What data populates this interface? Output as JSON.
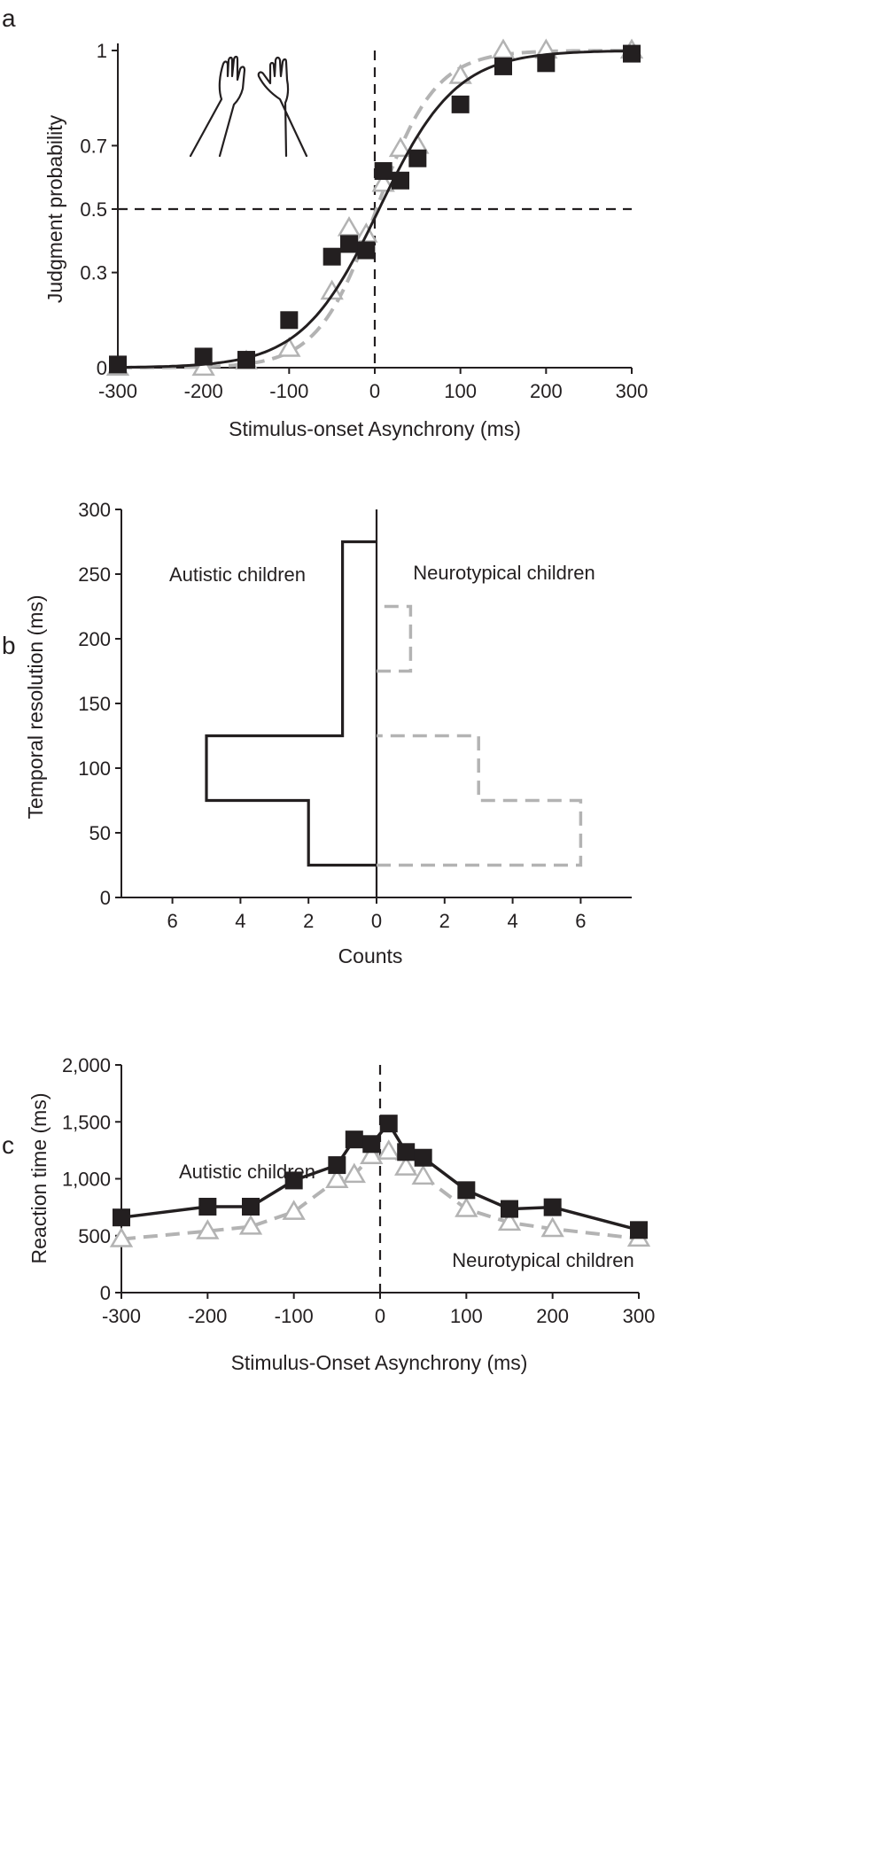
{
  "colors": {
    "autistic": "#231f20",
    "neurotypical": "#b3b3b3",
    "axis": "#231f20"
  },
  "chart_data": [
    {
      "panel": "a",
      "type": "scatter",
      "xlabel": "Stimulus-onset Asynchrony (ms)",
      "ylabel": "Judgment probability",
      "xlim": [
        -300,
        300
      ],
      "ylim": [
        0,
        1
      ],
      "xticks": [
        -300,
        -200,
        -100,
        0,
        100,
        200,
        300
      ],
      "xtick_labels": [
        "-300",
        "-200",
        "-100",
        "0",
        "100",
        "200",
        "300"
      ],
      "yticks": [
        0,
        0.3,
        0.5,
        0.7,
        1
      ],
      "ytick_labels": [
        "0",
        "0.3",
        "0.5",
        "0.7",
        "1"
      ],
      "reference_lines": {
        "x": 0,
        "y": 0.5
      },
      "icon": "hands-icon",
      "series": [
        {
          "name": "Autistic children",
          "marker": "square",
          "line": "solid",
          "x": [
            -300,
            -200,
            -150,
            -100,
            -50,
            -30,
            -10,
            10,
            30,
            50,
            100,
            150,
            200,
            300
          ],
          "values": [
            0.01,
            0.035,
            0.025,
            0.15,
            0.35,
            0.39,
            0.37,
            0.62,
            0.59,
            0.66,
            0.83,
            0.95,
            0.96,
            0.99
          ],
          "fit": {
            "type": "logistic",
            "mu": 5,
            "sigma": 72
          }
        },
        {
          "name": "Neurotypical children",
          "marker": "triangle",
          "line": "dashed",
          "x": [
            -300,
            -200,
            -150,
            -100,
            -50,
            -30,
            -10,
            10,
            30,
            50,
            100,
            150,
            200,
            300
          ],
          "values": [
            0.0,
            0.0,
            0.02,
            0.06,
            0.24,
            0.44,
            0.42,
            0.58,
            0.69,
            0.7,
            0.92,
            1.0,
            1.0,
            1.0
          ],
          "fit": {
            "type": "logistic",
            "mu": 2,
            "sigma": 55
          }
        }
      ]
    },
    {
      "panel": "b",
      "type": "bar",
      "orientation": "back-to-back horizontal histogram",
      "xlabel": "Counts",
      "ylabel": "Temporal resolution (ms)",
      "xlim": [
        -7.5,
        7.5
      ],
      "ylim": [
        0,
        300
      ],
      "xticks": [
        -6,
        -4,
        -2,
        0,
        2,
        4,
        6
      ],
      "xtick_labels": [
        "6",
        "4",
        "2",
        "0",
        "2",
        "4",
        "6"
      ],
      "yticks": [
        0,
        50,
        100,
        150,
        200,
        250,
        300
      ],
      "ytick_labels": [
        "0",
        "50",
        "100",
        "150",
        "200",
        "250",
        "300"
      ],
      "bin_edges": [
        25,
        75,
        125,
        175,
        225,
        275
      ],
      "series": [
        {
          "name": "Autistic children",
          "side": "left",
          "line": "solid",
          "counts": [
            2,
            5,
            1,
            1,
            1
          ]
        },
        {
          "name": "Neurotypical children",
          "side": "right",
          "line": "dashed",
          "counts": [
            6,
            3,
            0,
            1,
            0
          ]
        }
      ],
      "annotations": [
        "Autistic children",
        "Neurotypical children"
      ]
    },
    {
      "panel": "c",
      "type": "line",
      "xlabel": "Stimulus-Onset Asynchrony (ms)",
      "ylabel": "Reaction time (ms)",
      "xlim": [
        -300,
        300
      ],
      "ylim": [
        0,
        2000
      ],
      "xticks": [
        -300,
        -200,
        -100,
        0,
        100,
        200,
        300
      ],
      "xtick_labels": [
        "-300",
        "-200",
        "-100",
        "0",
        "100",
        "200",
        "300"
      ],
      "yticks": [
        0,
        500,
        1000,
        1500,
        2000
      ],
      "ytick_labels": [
        "0",
        "500",
        "1,000",
        "1,500",
        "2,000"
      ],
      "reference_lines": {
        "x": 0
      },
      "series": [
        {
          "name": "Autistic children",
          "marker": "square",
          "line": "solid",
          "x": [
            -300,
            -200,
            -150,
            -100,
            -50,
            -30,
            -10,
            10,
            30,
            50,
            100,
            150,
            200,
            300
          ],
          "values": [
            660,
            755,
            755,
            985,
            1120,
            1345,
            1305,
            1485,
            1235,
            1185,
            900,
            735,
            750,
            550
          ]
        },
        {
          "name": "Neurotypical children",
          "marker": "triangle",
          "line": "dashed",
          "x": [
            -300,
            -200,
            -150,
            -100,
            -50,
            -30,
            -10,
            10,
            30,
            50,
            100,
            150,
            200,
            300
          ],
          "values": [
            470,
            540,
            580,
            710,
            990,
            1035,
            1200,
            1240,
            1100,
            1020,
            735,
            615,
            560,
            475
          ]
        }
      ],
      "annotations": [
        "Autistic children",
        "Neurotypical children"
      ]
    }
  ]
}
